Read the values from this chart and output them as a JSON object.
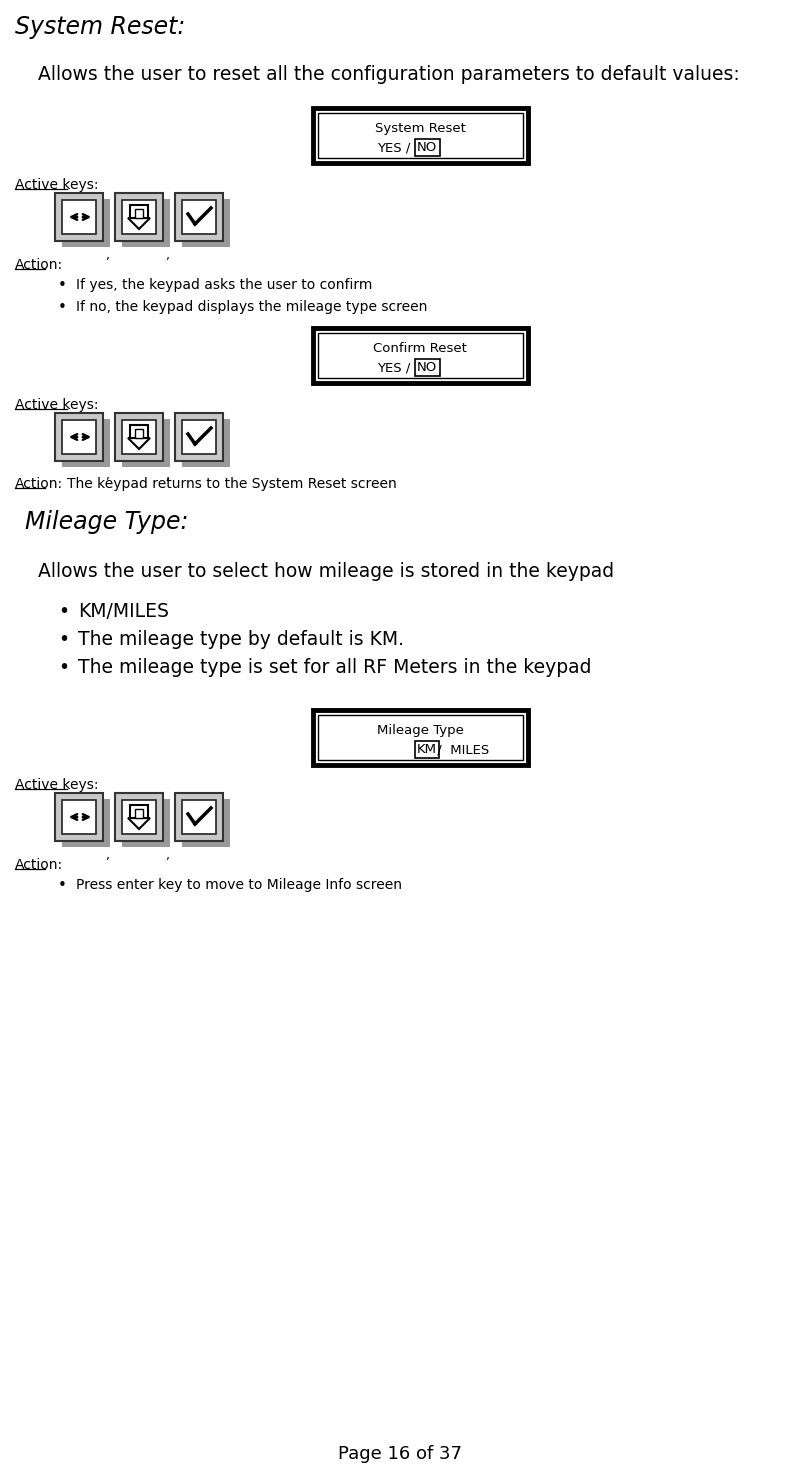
{
  "bg_color": "#ffffff",
  "fig_w": 8.0,
  "fig_h": 14.65,
  "dpi": 100,
  "section1_title": "System Reset:",
  "section1_subtitle": "Allows the user to reset all the configuration parameters to default values:",
  "lcd1_title": "System Reset",
  "lcd1_body_plain": "YES / ",
  "lcd1_body_highlight": "NO",
  "lcd2_title": "Confirm Reset",
  "lcd2_body_plain": "YES / ",
  "lcd2_body_highlight": "NO",
  "action1_bullets": [
    "If yes, the keypad asks the user to confirm",
    "If no, the keypad displays the mileage type screen"
  ],
  "action2_text": "The keypad returns to the System Reset screen",
  "section2_title": "Mileage Type:",
  "section2_subtitle": "Allows the user to select how mileage is stored in the keypad",
  "section2_bullets": [
    "KM/MILES",
    "The mileage type by default is KM.",
    "The mileage type is set for all RF Meters in the keypad"
  ],
  "lcd3_title": "Mileage Type",
  "lcd3_body_highlight": "KM",
  "lcd3_body_after": " /  MILES",
  "action3_bullets": [
    "Press enter key to move to Mileage Info screen"
  ],
  "active_keys_label": "Active keys:",
  "action_label": "Action:",
  "page_number": "Page 16 of 37"
}
